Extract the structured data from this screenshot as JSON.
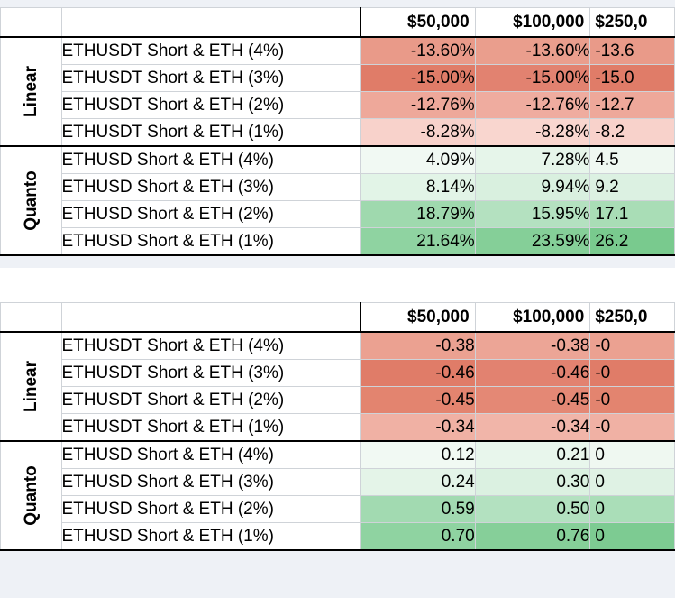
{
  "colors": {
    "neg_strong": "#e07a66",
    "neg_mid": "#ea9a88",
    "neg_light": "#f5c4bb",
    "pos_light": "#e9f6ed",
    "pos_mid": "#ccebd5",
    "pos_strong": "#86cf98"
  },
  "tables": [
    {
      "headers": [
        "$50,000",
        "$100,000",
        "$250,0"
      ],
      "groups": [
        {
          "name": "Linear",
          "rows": [
            {
              "label": "ETHUSDT Short & ETH (4%)",
              "values": [
                "-13.60%",
                "-13.60%",
                "-13.6"
              ],
              "shades": [
                "#e99a89",
                "#ea9e8d",
                "#e99a89"
              ]
            },
            {
              "label": "ETHUSDT Short & ETH (3%)",
              "values": [
                "-15.00%",
                "-15.00%",
                "-15.0"
              ],
              "shades": [
                "#e07c68",
                "#e28270",
                "#e07c68"
              ]
            },
            {
              "label": "ETHUSDT Short & ETH (2%)",
              "values": [
                "-12.76%",
                "-12.76%",
                "-12.7"
              ],
              "shades": [
                "#eea89a",
                "#efac9f",
                "#eea89a"
              ]
            },
            {
              "label": "ETHUSDT Short & ETH (1%)",
              "values": [
                "-8.28%",
                "-8.28%",
                "-8.2"
              ],
              "shades": [
                "#f8d2cb",
                "#f9d6cf",
                "#f8d2cb"
              ]
            }
          ]
        },
        {
          "name": "Quanto",
          "rows": [
            {
              "label": "ETHUSD Short & ETH (4%)",
              "values": [
                "4.09%",
                "7.28%",
                "4.5"
              ],
              "shades": [
                "#f1f9f3",
                "#e6f5ea",
                "#eff8f1"
              ]
            },
            {
              "label": "ETHUSD Short & ETH (3%)",
              "values": [
                "8.14%",
                "9.94%",
                "9.2"
              ],
              "shades": [
                "#e2f4e7",
                "#d9f0df",
                "#dcf1e2"
              ]
            },
            {
              "label": "ETHUSD Short & ETH (2%)",
              "values": [
                "18.79%",
                "15.95%",
                "17.1"
              ],
              "shades": [
                "#9fd9ae",
                "#b4e1c0",
                "#a9ddb6"
              ]
            },
            {
              "label": "ETHUSD Short & ETH (1%)",
              "values": [
                "21.64%",
                "23.59%",
                "26.2"
              ],
              "shades": [
                "#8fd3a1",
                "#85cf98",
                "#79ca8e"
              ]
            }
          ]
        }
      ]
    },
    {
      "headers": [
        "$50,000",
        "$100,000",
        "$250,0"
      ],
      "groups": [
        {
          "name": "Linear",
          "rows": [
            {
              "label": "ETHUSDT Short & ETH (4%)",
              "values": [
                "-0.38",
                "-0.38",
                "-0"
              ],
              "shades": [
                "#eba191",
                "#eca596",
                "#eba191"
              ]
            },
            {
              "label": "ETHUSDT Short & ETH (3%)",
              "values": [
                "-0.46",
                "-0.46",
                "-0"
              ],
              "shades": [
                "#e07c68",
                "#e28270",
                "#e07c68"
              ]
            },
            {
              "label": "ETHUSDT Short & ETH (2%)",
              "values": [
                "-0.45",
                "-0.45",
                "-0"
              ],
              "shades": [
                "#e3846f",
                "#e48875",
                "#e3846f"
              ]
            },
            {
              "label": "ETHUSDT Short & ETH (1%)",
              "values": [
                "-0.34",
                "-0.34",
                "-0"
              ],
              "shades": [
                "#f0b1a4",
                "#f1b5a9",
                "#f0b1a4"
              ]
            }
          ]
        },
        {
          "name": "Quanto",
          "rows": [
            {
              "label": "ETHUSD Short & ETH (4%)",
              "values": [
                "0.12",
                "0.21",
                "0"
              ],
              "shades": [
                "#f1f9f3",
                "#e8f6ec",
                "#eff8f1"
              ]
            },
            {
              "label": "ETHUSD Short & ETH (3%)",
              "values": [
                "0.24",
                "0.30",
                "0"
              ],
              "shades": [
                "#e4f4e8",
                "#dbf1e1",
                "#dff2e4"
              ]
            },
            {
              "label": "ETHUSD Short & ETH (2%)",
              "values": [
                "0.59",
                "0.50",
                "0"
              ],
              "shades": [
                "#a2dab1",
                "#b3e1c0",
                "#aadeb8"
              ]
            },
            {
              "label": "ETHUSD Short & ETH (1%)",
              "values": [
                "0.70",
                "0.76",
                "0"
              ],
              "shades": [
                "#8fd3a1",
                "#86cf99",
                "#7dcb92"
              ]
            }
          ]
        }
      ]
    }
  ]
}
